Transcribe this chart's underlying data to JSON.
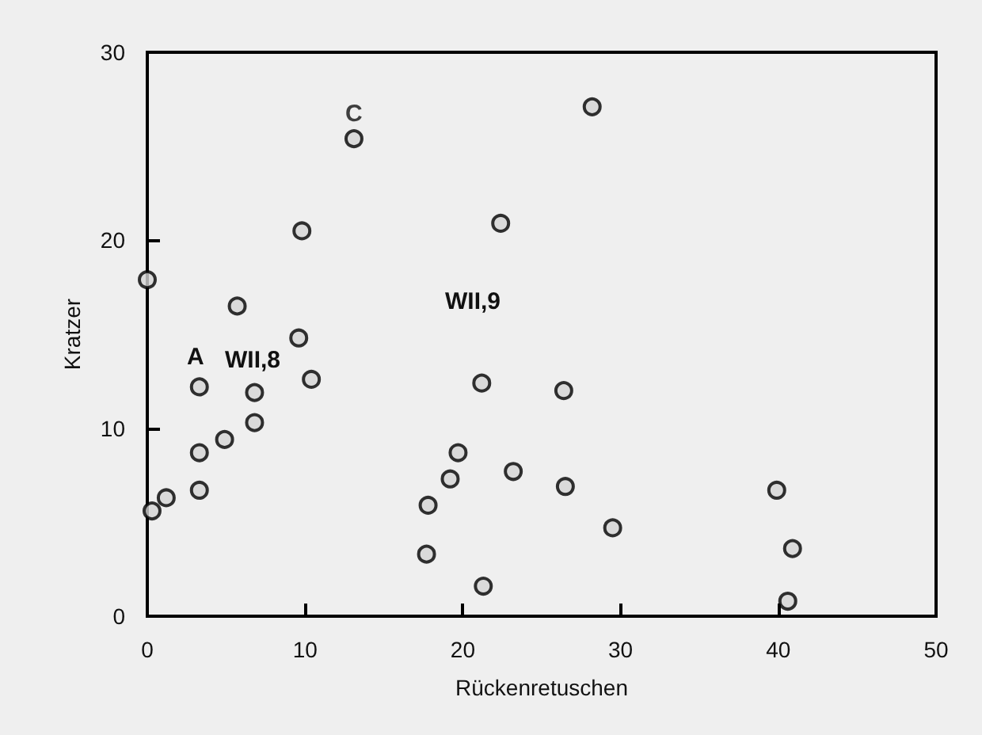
{
  "chart_data": {
    "type": "scatter",
    "xlabel": "Rückenretuschen",
    "ylabel": "Kratzer",
    "xlim": [
      0,
      50
    ],
    "ylim": [
      0,
      30
    ],
    "xticks": [
      0,
      10,
      20,
      30,
      40,
      50
    ],
    "yticks": [
      0,
      10,
      20,
      30
    ],
    "grid": false,
    "marker": "circle",
    "series": [
      {
        "color": "#000000",
        "x": [
          0,
          5.7,
          9.6,
          9.8,
          13.1,
          10.4,
          3.3,
          6.8,
          6.8,
          4.9,
          3.3,
          3.3,
          1.2,
          0.3,
          21.2,
          26.4,
          19.7,
          19.2,
          17.8,
          17.7,
          21.3,
          23.2,
          26.5,
          29.5,
          39.9,
          40.9,
          40.6,
          28.2,
          22.4
        ],
        "values": [
          17.9,
          16.5,
          14.8,
          20.5,
          25.4,
          12.6,
          12.2,
          11.9,
          10.3,
          9.4,
          8.7,
          6.7,
          6.3,
          5.6,
          12.4,
          12.0,
          8.7,
          7.3,
          5.9,
          3.3,
          1.6,
          7.7,
          6.9,
          4.7,
          6.7,
          3.6,
          0.8,
          27.1,
          20.9
        ]
      }
    ],
    "annotations": [
      {
        "text": "C",
        "x": 13.1,
        "y": 25.4
      },
      "A",
      "WII,8",
      "WII,9"
    ]
  }
}
